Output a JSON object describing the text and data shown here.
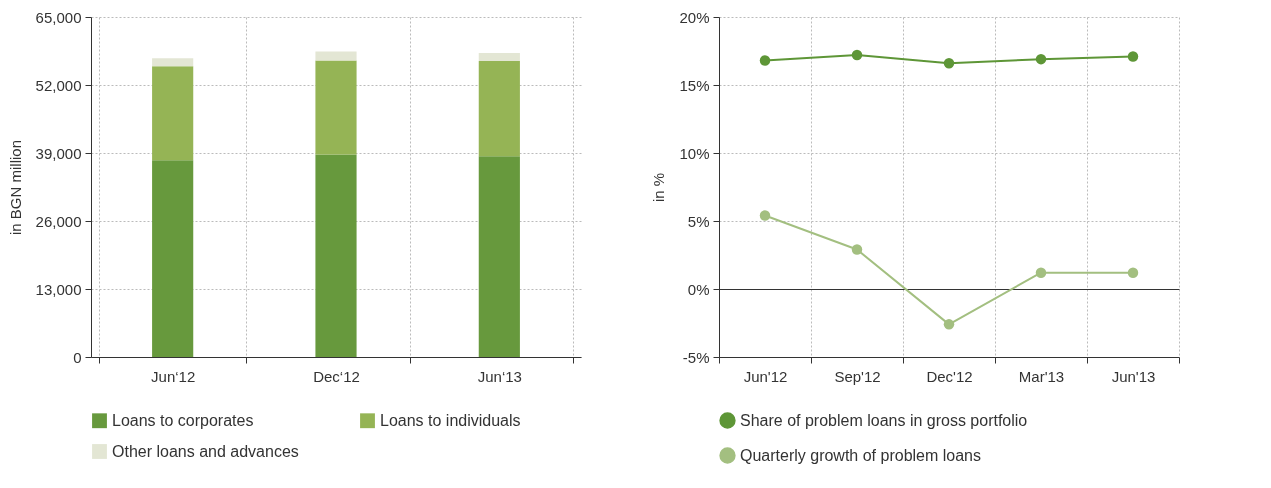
{
  "chart_data": [
    {
      "type": "bar",
      "stacked": true,
      "ylabel": "in BGN million",
      "categories": [
        "Jun‘12",
        "Dec‘12",
        "Jun‘13"
      ],
      "ylim": [
        0,
        65000
      ],
      "yticks": [
        {
          "value": 0,
          "label": "0"
        },
        {
          "value": 13000,
          "label": "13,000"
        },
        {
          "value": 26000,
          "label": "26,000"
        },
        {
          "value": 39000,
          "label": "39,000"
        },
        {
          "value": 52000,
          "label": "52,000"
        },
        {
          "value": 65000,
          "label": "65,000"
        }
      ],
      "grid": true,
      "legend": "bottom",
      "series": [
        {
          "name": "Loans to corporates",
          "color": "#67993d",
          "values": [
            37600,
            38700,
            38400
          ]
        },
        {
          "name": "Loans to individuals",
          "color": "#95b455",
          "values": [
            18000,
            18000,
            18200
          ]
        },
        {
          "name": "Other loans and advances",
          "color": "#e3e6d4",
          "values": [
            1500,
            1700,
            1500
          ]
        }
      ]
    },
    {
      "type": "line",
      "ylabel": "in %",
      "categories": [
        "Jun'12",
        "Sep'12",
        "Dec'12",
        "Mar'13",
        "Jun'13"
      ],
      "ylim": [
        -5,
        20
      ],
      "yticks": [
        {
          "value": -5,
          "label": "-5%"
        },
        {
          "value": 0,
          "label": "0%"
        },
        {
          "value": 5,
          "label": "5%"
        },
        {
          "value": 10,
          "label": "10%"
        },
        {
          "value": 15,
          "label": "15%"
        },
        {
          "value": 20,
          "label": "20%"
        }
      ],
      "grid": true,
      "legend": "bottom",
      "marker": "circle",
      "series": [
        {
          "name": "Share of problem loans in gross portfolio",
          "color": "#5e9637",
          "values": [
            16.8,
            17.2,
            16.6,
            16.9,
            17.1
          ]
        },
        {
          "name": "Quarterly growth of problem loans",
          "color": "#a3bf80",
          "values": [
            5.4,
            2.9,
            -2.6,
            1.2,
            1.2
          ]
        }
      ]
    }
  ]
}
